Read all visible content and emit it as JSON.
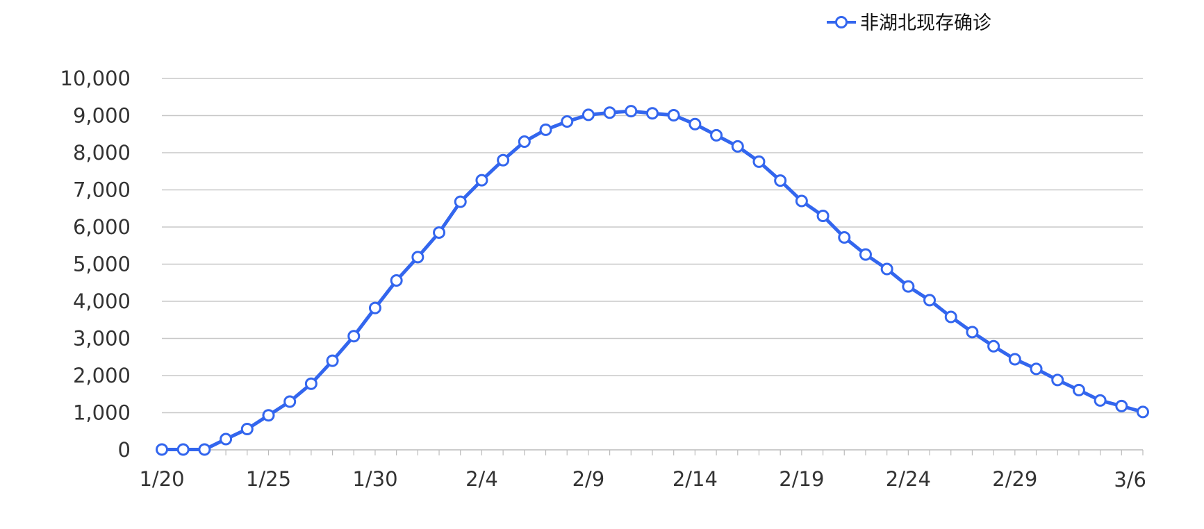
{
  "chart_data": {
    "type": "line",
    "title": "",
    "xlabel": "",
    "ylabel": "",
    "ylim": [
      0,
      10000
    ],
    "yticks": [
      0,
      1000,
      2000,
      3000,
      4000,
      5000,
      6000,
      7000,
      8000,
      9000,
      10000
    ],
    "ytick_labels": [
      "0",
      "1,000",
      "2,000",
      "3,000",
      "4,000",
      "5,000",
      "6,000",
      "7,000",
      "8,000",
      "9,000",
      "10,000"
    ],
    "x": [
      "1/20",
      "1/21",
      "1/22",
      "1/23",
      "1/24",
      "1/25",
      "1/26",
      "1/27",
      "1/28",
      "1/29",
      "1/30",
      "1/31",
      "2/1",
      "2/2",
      "2/3",
      "2/4",
      "2/5",
      "2/6",
      "2/7",
      "2/8",
      "2/9",
      "2/10",
      "2/11",
      "2/12",
      "2/13",
      "2/14",
      "2/15",
      "2/16",
      "2/17",
      "2/18",
      "2/19",
      "2/20",
      "2/21",
      "2/22",
      "2/23",
      "2/24",
      "2/25",
      "2/26",
      "2/27",
      "2/28",
      "2/29",
      "3/1",
      "3/2",
      "3/3",
      "3/4",
      "3/5",
      "3/6"
    ],
    "xtick_labels": [
      "1/20",
      "1/25",
      "1/30",
      "2/4",
      "2/9",
      "2/14",
      "2/19",
      "2/24",
      "2/29",
      "3/6"
    ],
    "grid": "horizontal",
    "legend": "top-right",
    "colors": {
      "line": "#3366EE",
      "marker_fill": "#ffffff",
      "grid": "#c8c8c8",
      "axis": "#bbbbbb"
    },
    "series": [
      {
        "name": "非湖北现存确诊",
        "values": [
          10,
          10,
          10,
          290,
          560,
          930,
          1300,
          1780,
          2400,
          3060,
          3820,
          4560,
          5190,
          5850,
          6680,
          7260,
          7800,
          8300,
          8620,
          8840,
          9020,
          9080,
          9120,
          9060,
          9010,
          8770,
          8470,
          8170,
          7760,
          7250,
          6700,
          6300,
          5720,
          5260,
          4870,
          4400,
          4030,
          3580,
          3170,
          2790,
          2440,
          2180,
          1880,
          1610,
          1330,
          1180,
          1020
        ]
      }
    ]
  }
}
